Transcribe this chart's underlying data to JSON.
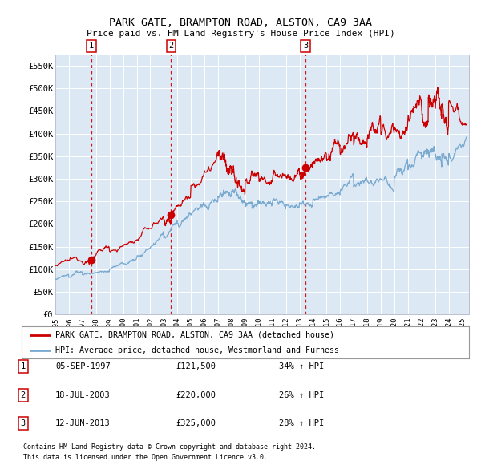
{
  "title": "PARK GATE, BRAMPTON ROAD, ALSTON, CA9 3AA",
  "subtitle": "Price paid vs. HM Land Registry's House Price Index (HPI)",
  "legend_line1": "PARK GATE, BRAMPTON ROAD, ALSTON, CA9 3AA (detached house)",
  "legend_line2": "HPI: Average price, detached house, Westmorland and Furness",
  "footer1": "Contains HM Land Registry data © Crown copyright and database right 2024.",
  "footer2": "This data is licensed under the Open Government Licence v3.0.",
  "sale_color": "#cc0000",
  "hpi_color": "#7aaad0",
  "bg_color": "#dce9f5",
  "sale_points": [
    {
      "num": 1,
      "year": 1997.67,
      "price": 121500,
      "date": "05-SEP-1997",
      "pct": "34%",
      "dir": "↑"
    },
    {
      "num": 2,
      "year": 2003.54,
      "price": 220000,
      "date": "18-JUL-2003",
      "pct": "26%",
      "dir": "↑"
    },
    {
      "num": 3,
      "year": 2013.44,
      "price": 325000,
      "date": "12-JUN-2013",
      "pct": "28%",
      "dir": "↑"
    }
  ],
  "ylim": [
    0,
    575000
  ],
  "xlim": [
    1995.0,
    2025.5
  ],
  "yticks": [
    0,
    50000,
    100000,
    150000,
    200000,
    250000,
    300000,
    350000,
    400000,
    450000,
    500000,
    550000
  ],
  "ytick_labels": [
    "£0",
    "£50K",
    "£100K",
    "£150K",
    "£200K",
    "£250K",
    "£300K",
    "£350K",
    "£400K",
    "£450K",
    "£500K",
    "£550K"
  ],
  "xticks": [
    1995,
    1996,
    1997,
    1998,
    1999,
    2000,
    2001,
    2002,
    2003,
    2004,
    2005,
    2006,
    2007,
    2008,
    2009,
    2010,
    2011,
    2012,
    2013,
    2014,
    2015,
    2016,
    2017,
    2018,
    2019,
    2020,
    2021,
    2022,
    2023,
    2024,
    2025
  ]
}
